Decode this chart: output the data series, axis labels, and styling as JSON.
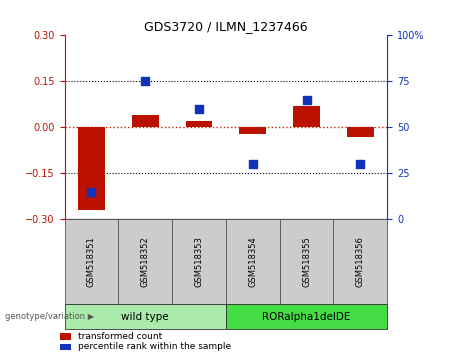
{
  "title": "GDS3720 / ILMN_1237466",
  "samples": [
    "GSM518351",
    "GSM518352",
    "GSM518353",
    "GSM518354",
    "GSM518355",
    "GSM518356"
  ],
  "red_values": [
    -0.27,
    0.04,
    0.02,
    -0.02,
    0.07,
    -0.03
  ],
  "blue_values_pct": [
    15,
    75,
    60,
    30,
    65,
    30
  ],
  "ylim_left": [
    -0.3,
    0.3
  ],
  "ylim_right": [
    0,
    100
  ],
  "yticks_left": [
    -0.3,
    -0.15,
    0,
    0.15,
    0.3
  ],
  "yticks_right": [
    0,
    25,
    50,
    75,
    100
  ],
  "groups": [
    {
      "label": "wild type",
      "indices": [
        0,
        1,
        2
      ],
      "color": "#AAEAAA"
    },
    {
      "label": "RORalpha1delDE",
      "indices": [
        3,
        4,
        5
      ],
      "color": "#44DD44"
    }
  ],
  "group_label": "genotype/variation",
  "legend_red": "transformed count",
  "legend_blue": "percentile rank within the sample",
  "red_color": "#BB1100",
  "blue_color": "#1133BB",
  "dotted_color": "#000000",
  "zero_line_color": "#CC2200",
  "bar_width": 0.5,
  "sample_box_color": "#CCCCCC",
  "background_color": "#ffffff"
}
